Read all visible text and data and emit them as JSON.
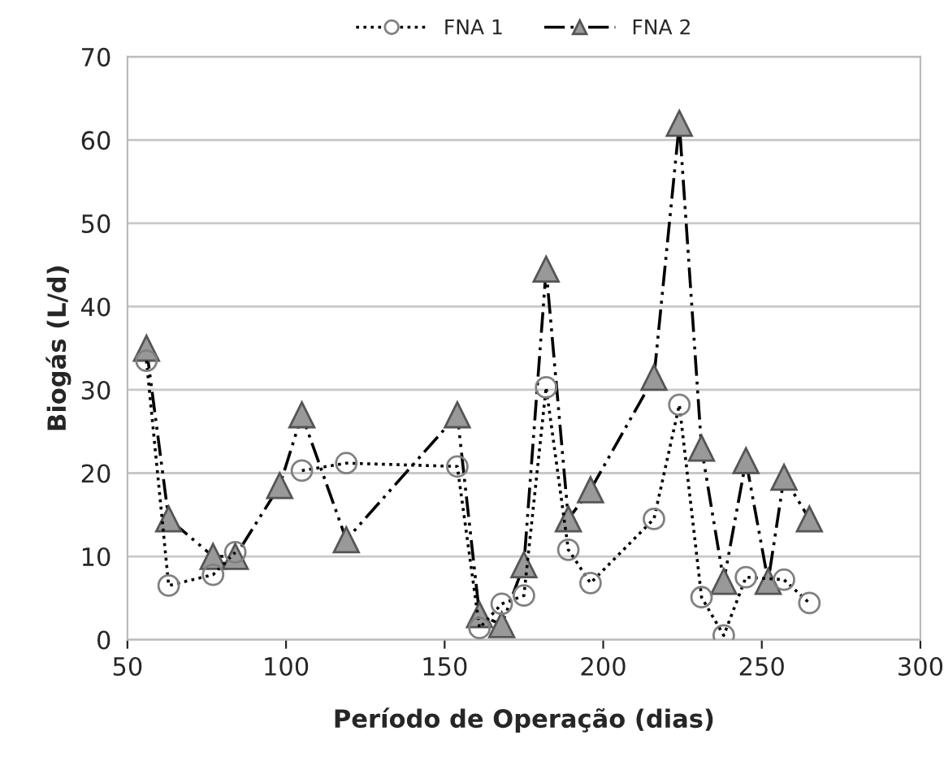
{
  "chart_data": {
    "type": "line",
    "xlabel": "Período de Operação (dias)",
    "ylabel": "Biogás (L/d)",
    "xlim": [
      50,
      300
    ],
    "xticks": [
      50,
      100,
      150,
      200,
      250,
      300
    ],
    "ylim": [
      0,
      70
    ],
    "yticks": [
      0,
      10,
      20,
      30,
      40,
      50,
      60,
      70
    ],
    "grid": "y",
    "legend": "top",
    "series": [
      {
        "name": "FNA 1",
        "color": "#808080",
        "marker": "circle",
        "line_style": "dotted",
        "x": [
          56,
          63,
          77,
          84,
          98,
          105,
          119,
          154,
          161,
          168,
          175,
          182,
          189,
          196,
          216,
          224,
          231,
          238,
          245,
          257,
          265
        ],
        "values": [
          33.5,
          6.5,
          7.8,
          10.5,
          null,
          20.3,
          21.2,
          20.8,
          1.4,
          4.3,
          5.3,
          30.3,
          10.8,
          6.8,
          14.5,
          28.2,
          5.1,
          0.5,
          7.5,
          7.2,
          4.4
        ]
      },
      {
        "name": "FNA 2",
        "color": "#999999",
        "marker": "triangle",
        "line_style": "dashed",
        "x": [
          56,
          63,
          77,
          84,
          98,
          105,
          119,
          154,
          161,
          168,
          175,
          182,
          189,
          196,
          216,
          224,
          231,
          238,
          245,
          252,
          257,
          265
        ],
        "values": [
          35,
          14.5,
          10,
          10,
          18.5,
          27,
          12,
          27,
          3,
          1.8,
          9,
          44.5,
          14.5,
          18,
          31.5,
          62,
          23,
          7,
          21.5,
          7,
          19.5,
          14.5
        ]
      }
    ]
  }
}
